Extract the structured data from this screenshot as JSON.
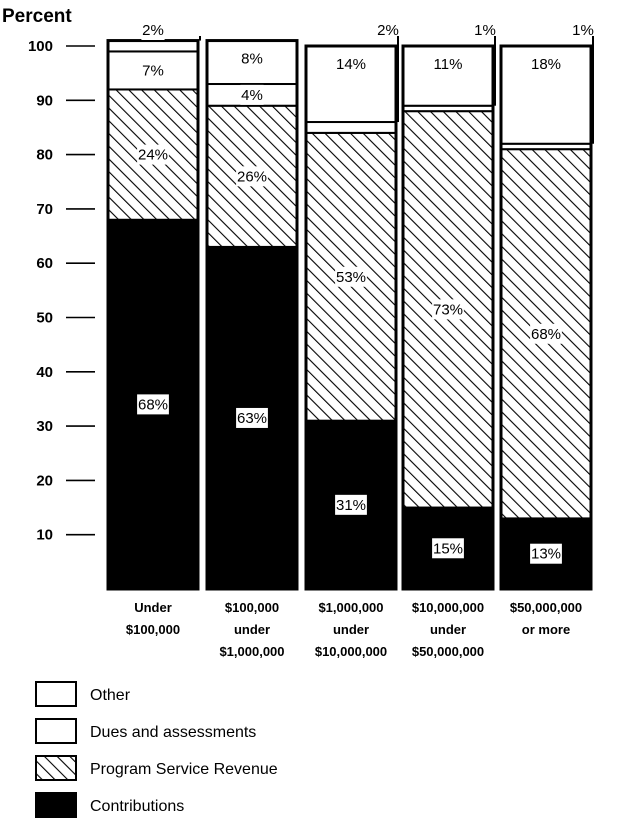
{
  "chart_data": {
    "type": "bar",
    "stacked": true,
    "ylabel": "Percent",
    "ylim": [
      0,
      100
    ],
    "yticks": [
      10,
      20,
      30,
      40,
      50,
      60,
      70,
      80,
      90,
      100
    ],
    "categories": [
      [
        "Under",
        "$100,000"
      ],
      [
        "$100,000",
        "under",
        "$1,000,000"
      ],
      [
        "$1,000,000",
        "under",
        "$10,000,000"
      ],
      [
        "$10,000,000",
        "under",
        "$50,000,000"
      ],
      [
        "$50,000,000",
        "or more"
      ]
    ],
    "series": [
      {
        "name": "Contributions",
        "key": "contributions",
        "values": [
          68,
          63,
          31,
          15,
          13
        ],
        "labels": [
          "68%",
          "63%",
          "31%",
          "15%",
          "13%"
        ],
        "fill": "solid-black"
      },
      {
        "name": "Program Service Revenue",
        "key": "program",
        "values": [
          24,
          26,
          53,
          73,
          68
        ],
        "labels": [
          "24%",
          "26%",
          "53%",
          "73%",
          "68%"
        ],
        "fill": "diagonal-hatch"
      },
      {
        "name": "Dues and assessments",
        "key": "dues",
        "values": [
          7,
          4,
          2,
          1,
          1
        ],
        "labels": [
          "7%",
          "4%",
          "2%",
          "1%",
          "1%"
        ],
        "fill": "white"
      },
      {
        "name": "Other",
        "key": "other",
        "values": [
          2,
          8,
          14,
          11,
          18
        ],
        "labels": [
          "2%",
          "8%",
          "14%",
          "11%",
          "18%"
        ],
        "fill": "white"
      }
    ],
    "legend": [
      {
        "name": "Other",
        "fill": "white"
      },
      {
        "name": "Dues and assessments",
        "fill": "white"
      },
      {
        "name": "Program Service Revenue",
        "fill": "diagonal-hatch"
      },
      {
        "name": "Contributions",
        "fill": "solid-black"
      }
    ],
    "legend_position": "bottom-left",
    "colors": {
      "bar_fill": "#000000",
      "background": "#ffffff",
      "label_box": "#ffffff"
    }
  }
}
